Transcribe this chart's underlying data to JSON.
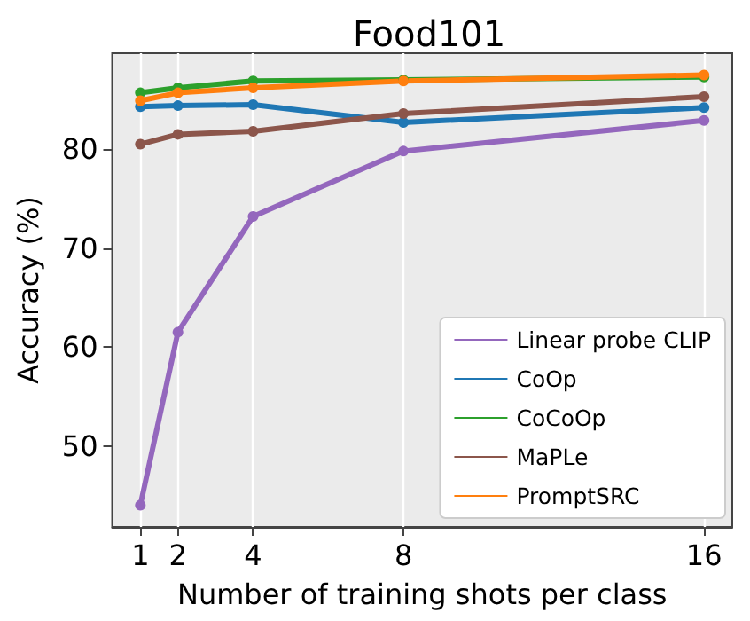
{
  "chart_data": {
    "type": "line",
    "title": "Food101",
    "xlabel": "Number of training shots per class",
    "ylabel": "Accuracy (%)",
    "x": [
      1,
      2,
      4,
      8,
      16
    ],
    "series": [
      {
        "name": "Linear probe CLIP",
        "color": "#9467bd",
        "values": [
          44.0,
          61.5,
          73.2,
          79.8,
          82.9
        ]
      },
      {
        "name": "CoOp",
        "color": "#1f77b4",
        "values": [
          84.3,
          84.4,
          84.5,
          82.7,
          84.2
        ]
      },
      {
        "name": "CoCoOp",
        "color": "#2ca02c",
        "values": [
          85.7,
          86.2,
          86.9,
          87.0,
          87.3
        ]
      },
      {
        "name": "MaPLe",
        "color": "#8c564b",
        "values": [
          80.5,
          81.5,
          81.8,
          83.6,
          85.3
        ]
      },
      {
        "name": "PromptSRC",
        "color": "#ff7f0e",
        "values": [
          84.9,
          85.7,
          86.2,
          86.9,
          87.5
        ]
      }
    ],
    "xlim": [
      0.25,
      16.75
    ],
    "xticks": [
      1,
      2,
      4,
      8,
      16
    ],
    "ylim": [
      41.8,
      89.7
    ],
    "yticks": [
      50,
      60,
      70,
      80
    ],
    "grid": "x",
    "legend": "bottom right",
    "marker": "circle",
    "line_style": "solid"
  }
}
